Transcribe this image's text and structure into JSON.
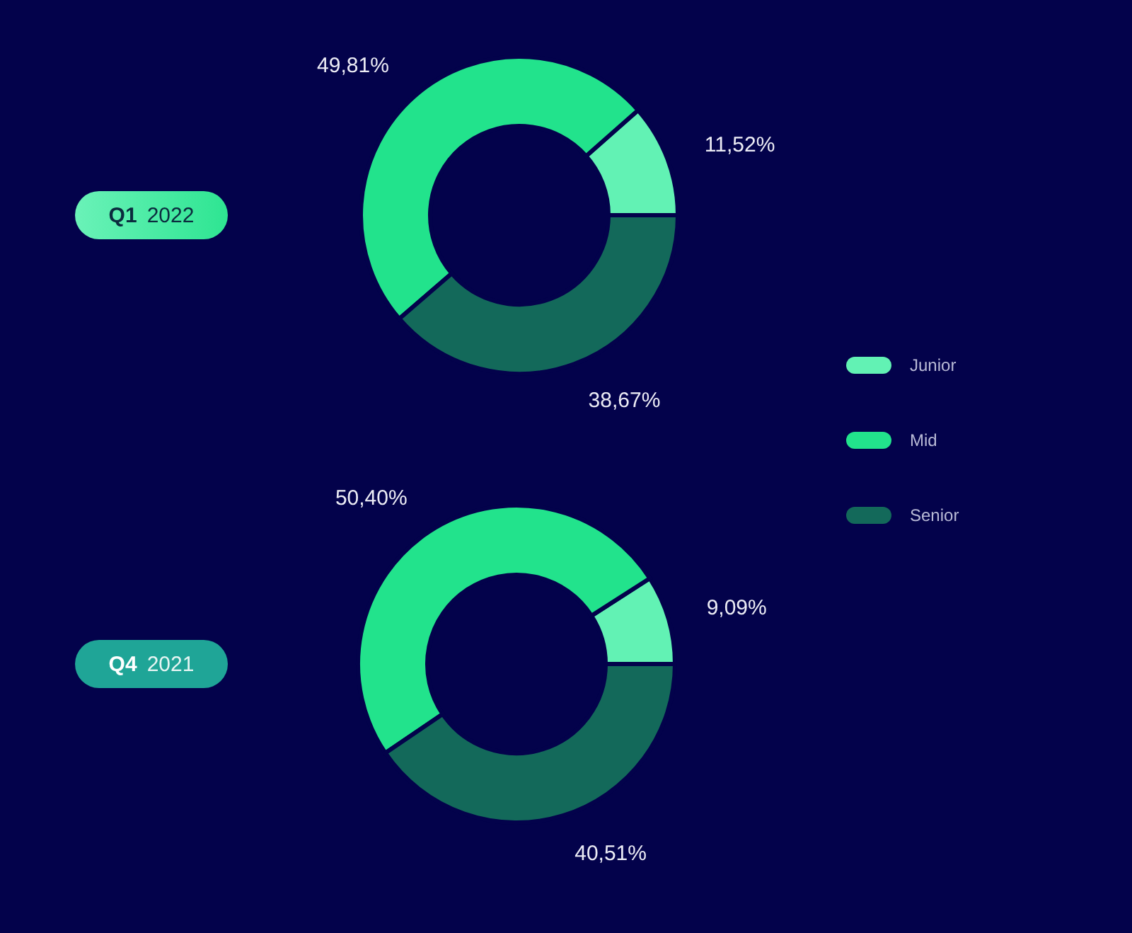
{
  "chart_data": {
    "type": "donut",
    "categories": [
      "Junior",
      "Mid",
      "Senior"
    ],
    "colors": [
      "#62f2b4",
      "#22e38c",
      "#13695a"
    ],
    "legend": "right",
    "series": [
      {
        "name": "Q1 2022",
        "values": [
          11.52,
          49.81,
          38.67
        ],
        "value_labels": [
          "11,52%",
          "49,81%",
          "38,67%"
        ]
      },
      {
        "name": "Q4 2021",
        "values": [
          9.09,
          50.4,
          40.51
        ],
        "value_labels": [
          "9,09%",
          "50,40%",
          "40,51%"
        ]
      }
    ]
  }
}
